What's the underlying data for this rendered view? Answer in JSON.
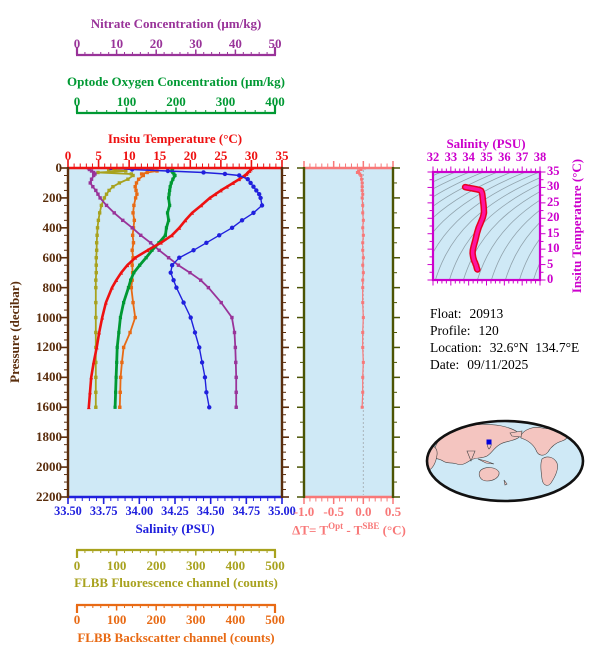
{
  "colors": {
    "nitrate": "#993399",
    "oxygen": "#009933",
    "temperature": "#ee1111",
    "salinity": "#2020dd",
    "fluorescence": "#a8a21e",
    "backscatter": "#e86a14",
    "pressure_axis": "#5a2d0c",
    "delta": "#f87878",
    "delta_side_axis": "#4c5404",
    "ts_axis": "#cc00cc",
    "ts_curve": "#ff14a0",
    "ts_curve_edge": "#e80020",
    "plot_bg": "#cfe9f6",
    "contour": "#90a2ac",
    "land": "#f4c5c0",
    "ocean": "#cfe9f6",
    "map_outline": "#111111",
    "map_marker": "#0000dd",
    "info_text": "#000000"
  },
  "header_rulers": [
    {
      "id": "nitrate",
      "title": "Nitrate Concentration (μm/kg)",
      "color": "#993399",
      "ticks": [
        "0",
        "10",
        "20",
        "30",
        "40",
        "50"
      ]
    },
    {
      "id": "oxygen",
      "title": "Optode Oxygen Concentration (μm/kg)",
      "color": "#009933",
      "ticks": [
        "0",
        "100",
        "200",
        "300",
        "400"
      ]
    },
    {
      "id": "temperature",
      "title": "Insitu Temperature (°C)",
      "color": "#ee1111",
      "ticks": [
        "0",
        "5",
        "10",
        "15",
        "20",
        "25",
        "30",
        "35"
      ]
    }
  ],
  "footer_rulers": [
    {
      "id": "fluorescence",
      "title": "FLBB Fluorescence channel (counts)",
      "color": "#a8a21e",
      "ticks": [
        "0",
        "100",
        "200",
        "300",
        "400",
        "500"
      ]
    },
    {
      "id": "backscatter",
      "title": "FLBB Backscatter channel (counts)",
      "color": "#e86a14",
      "ticks": [
        "0",
        "100",
        "200",
        "300",
        "400",
        "500"
      ]
    }
  ],
  "main_plot": {
    "ylabel": "Pressure (decibar)",
    "yticks": [
      "0",
      "200",
      "400",
      "600",
      "800",
      "1000",
      "1200",
      "1400",
      "1600",
      "1800",
      "2000",
      "2200"
    ],
    "xlabel": "Salinity (PSU)",
    "xticks": [
      "33.50",
      "33.75",
      "34.00",
      "34.25",
      "34.50",
      "34.75",
      "35.00"
    ]
  },
  "delta_plot": {
    "xticks": [
      "-1.0",
      "-0.5",
      "0.0",
      "0.5"
    ],
    "label_prefix": "ΔT= T",
    "label_sup1": "Opt",
    "label_mid": " - T",
    "label_sup2": "SBE",
    "label_suffix": " (°C)"
  },
  "ts_plot": {
    "title": "Salinity (PSU)",
    "xticks": [
      "32",
      "33",
      "34",
      "35",
      "36",
      "37",
      "38"
    ],
    "ylabel": "Insitu Temperature (°C)",
    "yticks": [
      "0",
      "5",
      "10",
      "15",
      "20",
      "25",
      "30",
      "35"
    ]
  },
  "float_info": {
    "rows": [
      {
        "label": "Float:",
        "value": "20913"
      },
      {
        "label": "Profile:",
        "value": "120"
      },
      {
        "label": "Location:",
        "value": "32.6°N  134.7°E"
      },
      {
        "label": "Date:",
        "value": "09/11/2025"
      }
    ]
  },
  "chart_data": [
    {
      "type": "line",
      "title": "Vertical profiles vs pressure",
      "ylabel": "Pressure (decibar)",
      "ylim": [
        0,
        2200
      ],
      "profile_max_pressure": 1600,
      "pressure": [
        0,
        10,
        20,
        30,
        40,
        50,
        75,
        100,
        125,
        150,
        175,
        200,
        250,
        300,
        350,
        400,
        450,
        500,
        550,
        600,
        650,
        700,
        750,
        800,
        900,
        1000,
        1100,
        1200,
        1300,
        1400,
        1500,
        1600
      ],
      "series": [
        {
          "name": "Insitu Temperature (°C)",
          "color": "#ee1111",
          "axis_range": [
            0,
            35
          ],
          "values": [
            30.1,
            29.9,
            29.7,
            29.4,
            29.2,
            28.9,
            28.0,
            27.0,
            26.0,
            25.0,
            24.1,
            23.2,
            21.8,
            20.3,
            19.2,
            18.2,
            17.0,
            15.2,
            13.0,
            11.0,
            9.7,
            8.7,
            7.9,
            7.2,
            6.2,
            5.6,
            5.1,
            4.7,
            4.2,
            3.8,
            3.6,
            3.4
          ]
        },
        {
          "name": "Salinity (PSU)",
          "color": "#2020dd",
          "axis_range": [
            33.5,
            35.0
          ],
          "values": [
            33.8,
            33.95,
            34.2,
            34.45,
            34.6,
            34.7,
            34.76,
            34.78,
            34.8,
            34.82,
            34.84,
            34.85,
            34.86,
            34.8,
            34.72,
            34.65,
            34.56,
            34.47,
            34.38,
            34.28,
            34.23,
            34.22,
            34.24,
            34.26,
            34.31,
            34.36,
            34.39,
            34.42,
            34.44,
            34.46,
            34.47,
            34.49
          ]
        },
        {
          "name": "Optode Oxygen Concentration (μm/kg)",
          "color": "#009933",
          "axis_range": [
            0,
            400
          ],
          "values": [
            196,
            195,
            194,
            196,
            198,
            200,
            196,
            193,
            191,
            190,
            189,
            188,
            190,
            186,
            188,
            184,
            182,
            170,
            157,
            146,
            134,
            123,
            117,
            113,
            104,
            98,
            95,
            92,
            91,
            90,
            89,
            88
          ]
        },
        {
          "name": "Nitrate Concentration (μm/kg)",
          "color": "#993399",
          "axis_range": [
            0,
            50
          ],
          "values": [
            4.8,
            5.0,
            5.5,
            6.0,
            6.3,
            6.0,
            5.5,
            5.2,
            5.8,
            6.5,
            7.0,
            7.5,
            9.0,
            10.8,
            12.8,
            15.0,
            17.0,
            19.3,
            21.3,
            23.5,
            25.8,
            28.5,
            31.0,
            32.8,
            35.8,
            38.3,
            38.9,
            39.1,
            39.2,
            39.3,
            39.3,
            39.3
          ]
        },
        {
          "name": "FLBB Fluorescence channel (counts)",
          "color": "#a8a21e",
          "axis_range": [
            0,
            500
          ],
          "values": [
            110,
            95,
            135,
            70,
            148,
            152,
            140,
            120,
            105,
            96,
            90,
            85,
            78,
            74,
            71,
            69,
            68,
            67,
            67,
            66,
            66,
            66,
            65,
            65,
            65,
            65,
            65,
            65,
            65,
            65,
            65,
            65
          ]
        },
        {
          "name": "FLBB Backscatter channel (counts)",
          "color": "#e86a14",
          "axis_range": [
            0,
            500
          ],
          "values": [
            187,
            195,
            208,
            185,
            172,
            176,
            165,
            160,
            157,
            159,
            161,
            158,
            154,
            152,
            155,
            153,
            151,
            153,
            150,
            152,
            150,
            151,
            150,
            148,
            152,
            157,
            145,
            130,
            126,
            123,
            122,
            121
          ]
        }
      ]
    },
    {
      "type": "line",
      "title": "ΔT= TOpt - TSBE (°C)",
      "xlim": [
        -1.0,
        0.5
      ],
      "ylabel": "Pressure (decibar)",
      "ylim": [
        0,
        2200
      ],
      "pressure": [
        0,
        10,
        20,
        30,
        40,
        50,
        75,
        100,
        125,
        150,
        175,
        200,
        250,
        300,
        350,
        400,
        450,
        500,
        550,
        600,
        650,
        700,
        750,
        800,
        900,
        1000,
        1100,
        1200,
        1300,
        1400,
        1500,
        1600
      ],
      "values": [
        0.02,
        -0.04,
        -0.08,
        -0.1,
        -0.06,
        -0.04,
        -0.03,
        -0.02,
        -0.02,
        -0.02,
        -0.01,
        -0.02,
        -0.01,
        -0.01,
        0.0,
        -0.01,
        0.0,
        -0.01,
        -0.01,
        0.0,
        -0.01,
        0.0,
        -0.01,
        -0.01,
        -0.01,
        0.0,
        -0.01,
        -0.01,
        0.0,
        -0.01,
        -0.01,
        -0.02
      ]
    },
    {
      "type": "scatter",
      "title": "T-S diagram",
      "xlabel": "Salinity (PSU)",
      "xlim": [
        32,
        38
      ],
      "ylabel": "Insitu Temperature (°C)",
      "ylim": [
        0,
        35
      ],
      "background": "sigma-theta isopycnal contours",
      "x": [
        33.8,
        33.95,
        34.2,
        34.45,
        34.6,
        34.7,
        34.76,
        34.78,
        34.8,
        34.82,
        34.84,
        34.85,
        34.86,
        34.8,
        34.72,
        34.65,
        34.56,
        34.47,
        34.38,
        34.28,
        34.23,
        34.22,
        34.24,
        34.26,
        34.31,
        34.36,
        34.39,
        34.42,
        34.44,
        34.46,
        34.47,
        34.49
      ],
      "y": [
        30.1,
        29.9,
        29.7,
        29.4,
        29.2,
        28.9,
        28.0,
        27.0,
        26.0,
        25.0,
        24.1,
        23.2,
        21.8,
        20.3,
        19.2,
        18.2,
        17.0,
        15.2,
        13.0,
        11.0,
        9.7,
        8.7,
        7.9,
        7.2,
        6.2,
        5.6,
        5.1,
        4.7,
        4.2,
        3.8,
        3.6,
        3.4
      ]
    }
  ]
}
